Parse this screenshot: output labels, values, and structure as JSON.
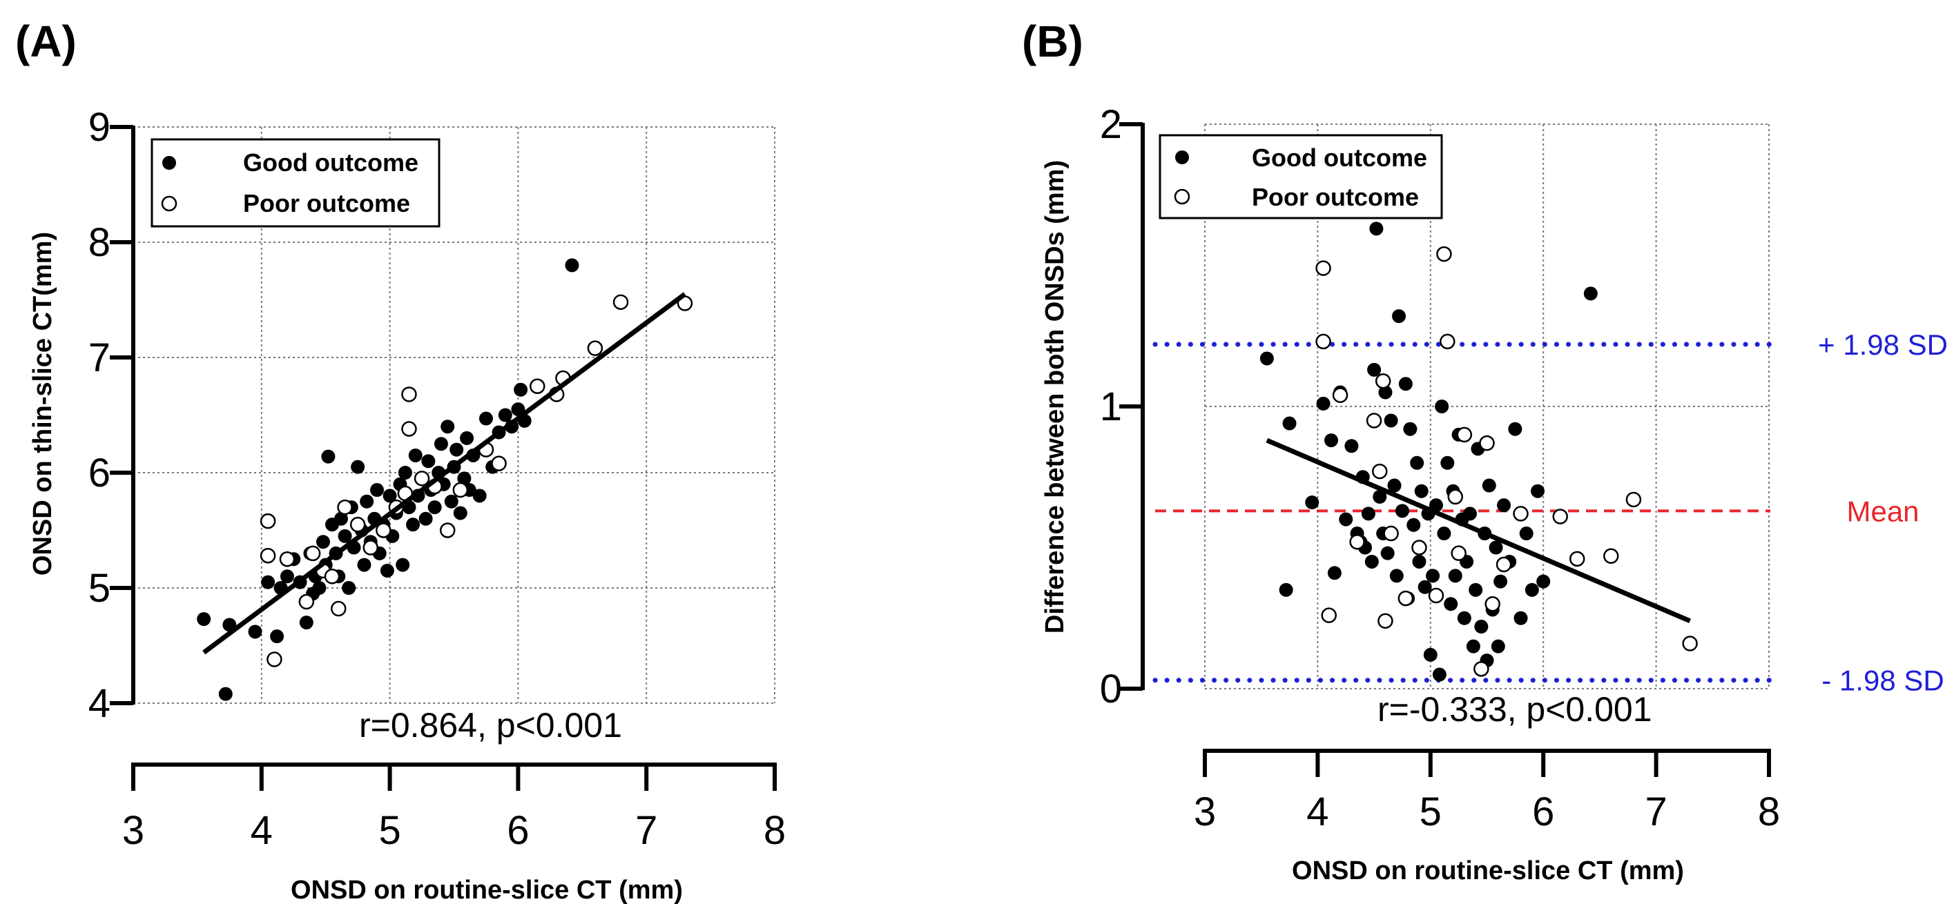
{
  "chart_data": [
    {
      "panel": "(A)",
      "type": "scatter",
      "xlabel": "ONSD on routine-slice CT (mm)",
      "ylabel": "ONSD on thin-slice CT(mm)",
      "xlim": [
        3,
        8
      ],
      "ylim": [
        4,
        9
      ],
      "xticks": [
        "3",
        "4",
        "5",
        "6",
        "7",
        "8"
      ],
      "yticks": [
        "4",
        "5",
        "6",
        "7",
        "8",
        "9"
      ],
      "grid": true,
      "legend_position": "top-left",
      "series": [
        {
          "name": "Good outcome",
          "marker": "filled-circle",
          "points": [
            [
              3.55,
              4.73
            ],
            [
              3.72,
              4.08
            ],
            [
              3.75,
              4.68
            ],
            [
              3.95,
              4.62
            ],
            [
              4.05,
              5.05
            ],
            [
              4.12,
              4.58
            ],
            [
              4.15,
              5.0
            ],
            [
              4.2,
              5.1
            ],
            [
              4.25,
              5.25
            ],
            [
              4.3,
              5.05
            ],
            [
              4.35,
              4.7
            ],
            [
              4.38,
              5.3
            ],
            [
              4.4,
              4.95
            ],
            [
              4.42,
              5.1
            ],
            [
              4.45,
              5.0
            ],
            [
              4.48,
              5.4
            ],
            [
              4.5,
              5.2
            ],
            [
              4.52,
              6.14
            ],
            [
              4.55,
              5.55
            ],
            [
              4.58,
              5.3
            ],
            [
              4.6,
              5.1
            ],
            [
              4.62,
              5.6
            ],
            [
              4.65,
              5.45
            ],
            [
              4.68,
              5.0
            ],
            [
              4.7,
              5.7
            ],
            [
              4.72,
              5.35
            ],
            [
              4.75,
              6.05
            ],
            [
              4.78,
              5.5
            ],
            [
              4.8,
              5.2
            ],
            [
              4.82,
              5.75
            ],
            [
              4.85,
              5.4
            ],
            [
              4.88,
              5.6
            ],
            [
              4.9,
              5.85
            ],
            [
              4.92,
              5.3
            ],
            [
              4.95,
              5.55
            ],
            [
              4.98,
              5.15
            ],
            [
              5.0,
              5.8
            ],
            [
              5.02,
              5.45
            ],
            [
              5.05,
              5.65
            ],
            [
              5.08,
              5.9
            ],
            [
              5.1,
              5.2
            ],
            [
              5.12,
              6.0
            ],
            [
              5.15,
              5.7
            ],
            [
              5.18,
              5.55
            ],
            [
              5.2,
              6.15
            ],
            [
              5.22,
              5.8
            ],
            [
              5.25,
              5.95
            ],
            [
              5.28,
              5.6
            ],
            [
              5.3,
              6.1
            ],
            [
              5.32,
              5.85
            ],
            [
              5.35,
              5.7
            ],
            [
              5.38,
              6.0
            ],
            [
              5.4,
              6.25
            ],
            [
              5.42,
              5.9
            ],
            [
              5.45,
              6.4
            ],
            [
              5.48,
              5.75
            ],
            [
              5.5,
              6.05
            ],
            [
              5.52,
              6.2
            ],
            [
              5.55,
              5.65
            ],
            [
              5.58,
              5.95
            ],
            [
              5.6,
              6.3
            ],
            [
              5.62,
              5.85
            ],
            [
              5.65,
              6.15
            ],
            [
              5.7,
              5.8
            ],
            [
              5.75,
              6.47
            ],
            [
              5.8,
              6.05
            ],
            [
              5.85,
              6.35
            ],
            [
              5.9,
              6.5
            ],
            [
              5.95,
              6.4
            ],
            [
              6.0,
              6.55
            ],
            [
              6.02,
              6.72
            ],
            [
              6.05,
              6.45
            ],
            [
              6.42,
              7.8
            ]
          ]
        },
        {
          "name": "Poor outcome",
          "marker": "open-circle",
          "points": [
            [
              4.05,
              5.58
            ],
            [
              4.05,
              5.28
            ],
            [
              4.1,
              4.38
            ],
            [
              4.2,
              5.25
            ],
            [
              4.35,
              4.88
            ],
            [
              4.4,
              5.3
            ],
            [
              4.48,
              5.15
            ],
            [
              4.55,
              5.1
            ],
            [
              4.6,
              4.82
            ],
            [
              4.65,
              5.7
            ],
            [
              4.75,
              5.55
            ],
            [
              4.85,
              5.35
            ],
            [
              4.95,
              5.5
            ],
            [
              5.05,
              5.7
            ],
            [
              5.12,
              5.82
            ],
            [
              5.15,
              6.68
            ],
            [
              5.15,
              6.38
            ],
            [
              5.25,
              5.95
            ],
            [
              5.35,
              5.88
            ],
            [
              5.45,
              5.5
            ],
            [
              5.55,
              5.85
            ],
            [
              5.75,
              6.2
            ],
            [
              5.85,
              6.08
            ],
            [
              6.15,
              6.75
            ],
            [
              6.3,
              6.68
            ],
            [
              6.35,
              6.82
            ],
            [
              6.6,
              7.08
            ],
            [
              6.8,
              7.48
            ],
            [
              7.3,
              7.47
            ]
          ]
        }
      ],
      "regression": {
        "x": [
          3.55,
          7.3
        ],
        "y": [
          4.44,
          7.55
        ]
      },
      "annotation": "r=0.864, p<0.001"
    },
    {
      "panel": "(B)",
      "type": "scatter",
      "xlabel": "ONSD on routine-slice CT (mm)",
      "ylabel": "Difference between both ONSDs (mm)",
      "xlim": [
        3,
        8
      ],
      "ylim": [
        0,
        2
      ],
      "xticks": [
        "3",
        "4",
        "5",
        "6",
        "7",
        "8"
      ],
      "yticks": [
        "0",
        "1",
        "2"
      ],
      "grid": true,
      "legend_position": "top-left",
      "series": [
        {
          "name": "Good outcome",
          "marker": "filled-circle",
          "points": [
            [
              3.55,
              1.17
            ],
            [
              3.72,
              0.35
            ],
            [
              3.75,
              0.94
            ],
            [
              3.95,
              0.66
            ],
            [
              4.05,
              1.01
            ],
            [
              4.12,
              0.88
            ],
            [
              4.15,
              0.41
            ],
            [
              4.2,
              1.05
            ],
            [
              4.25,
              0.6
            ],
            [
              4.3,
              0.86
            ],
            [
              4.35,
              0.55
            ],
            [
              4.38,
              0.52
            ],
            [
              4.4,
              0.75
            ],
            [
              4.42,
              0.5
            ],
            [
              4.45,
              0.62
            ],
            [
              4.48,
              0.45
            ],
            [
              4.5,
              1.13
            ],
            [
              4.52,
              1.63
            ],
            [
              4.55,
              0.68
            ],
            [
              4.58,
              0.55
            ],
            [
              4.6,
              1.05
            ],
            [
              4.62,
              0.48
            ],
            [
              4.65,
              0.95
            ],
            [
              4.68,
              0.72
            ],
            [
              4.7,
              0.4
            ],
            [
              4.72,
              1.32
            ],
            [
              4.75,
              0.63
            ],
            [
              4.78,
              1.08
            ],
            [
              4.8,
              0.32
            ],
            [
              4.82,
              0.92
            ],
            [
              4.85,
              0.58
            ],
            [
              4.88,
              0.8
            ],
            [
              4.9,
              0.45
            ],
            [
              4.92,
              0.7
            ],
            [
              4.95,
              0.36
            ],
            [
              4.98,
              0.62
            ],
            [
              5.0,
              0.12
            ],
            [
              5.02,
              0.4
            ],
            [
              5.05,
              0.65
            ],
            [
              5.08,
              0.05
            ],
            [
              5.1,
              1.0
            ],
            [
              5.12,
              0.55
            ],
            [
              5.15,
              0.8
            ],
            [
              5.18,
              0.3
            ],
            [
              5.2,
              0.7
            ],
            [
              5.22,
              0.4
            ],
            [
              5.25,
              0.9
            ],
            [
              5.28,
              0.6
            ],
            [
              5.3,
              0.25
            ],
            [
              5.32,
              0.45
            ],
            [
              5.35,
              0.62
            ],
            [
              5.38,
              0.15
            ],
            [
              5.4,
              0.35
            ],
            [
              5.42,
              0.85
            ],
            [
              5.45,
              0.22
            ],
            [
              5.48,
              0.55
            ],
            [
              5.5,
              0.1
            ],
            [
              5.52,
              0.72
            ],
            [
              5.55,
              0.28
            ],
            [
              5.58,
              0.5
            ],
            [
              5.6,
              0.15
            ],
            [
              5.62,
              0.38
            ],
            [
              5.65,
              0.65
            ],
            [
              5.7,
              0.45
            ],
            [
              5.75,
              0.92
            ],
            [
              5.8,
              0.25
            ],
            [
              5.85,
              0.55
            ],
            [
              5.9,
              0.35
            ],
            [
              5.95,
              0.7
            ],
            [
              6.0,
              0.38
            ],
            [
              6.42,
              1.4
            ]
          ]
        },
        {
          "name": "Poor outcome",
          "marker": "open-circle",
          "points": [
            [
              4.05,
              1.49
            ],
            [
              4.05,
              1.23
            ],
            [
              4.1,
              0.26
            ],
            [
              4.2,
              1.04
            ],
            [
              4.35,
              0.52
            ],
            [
              4.5,
              0.95
            ],
            [
              4.55,
              0.77
            ],
            [
              4.58,
              1.09
            ],
            [
              4.6,
              0.24
            ],
            [
              4.65,
              0.55
            ],
            [
              4.78,
              0.32
            ],
            [
              4.9,
              0.5
            ],
            [
              5.05,
              0.33
            ],
            [
              5.12,
              1.54
            ],
            [
              5.15,
              1.23
            ],
            [
              5.22,
              0.68
            ],
            [
              5.25,
              0.48
            ],
            [
              5.3,
              0.9
            ],
            [
              5.45,
              0.07
            ],
            [
              5.5,
              0.87
            ],
            [
              5.55,
              0.3
            ],
            [
              5.65,
              0.44
            ],
            [
              5.8,
              0.62
            ],
            [
              6.15,
              0.61
            ],
            [
              6.3,
              0.46
            ],
            [
              6.6,
              0.47
            ],
            [
              6.8,
              0.67
            ],
            [
              7.3,
              0.16
            ]
          ]
        }
      ],
      "regression": {
        "x": [
          3.55,
          7.3
        ],
        "y": [
          0.88,
          0.24
        ]
      },
      "reference_lines": [
        {
          "label": "+ 1.98 SD",
          "y": 1.22,
          "color": "#1f1fd6",
          "style": "dotted"
        },
        {
          "label": "Mean",
          "y": 0.63,
          "color": "#e8262b",
          "style": "dashed"
        },
        {
          "label": "- 1.98 SD",
          "y": 0.03,
          "color": "#1f1fd6",
          "style": "dotted"
        }
      ],
      "annotation": "r=-0.333, p<0.001"
    }
  ]
}
